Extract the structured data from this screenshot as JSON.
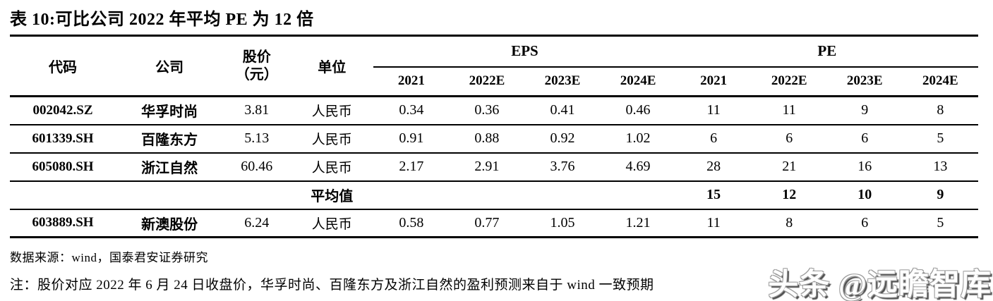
{
  "title": "表 10:可比公司 2022 年平均 PE 为 12 倍",
  "table": {
    "headers": {
      "code": "代码",
      "company": "公司",
      "price_line1": "股价",
      "price_line2": "（元）",
      "unit": "单位",
      "eps_group": "EPS",
      "pe_group": "PE",
      "years": [
        "2021",
        "2022E",
        "2023E",
        "2024E"
      ]
    },
    "rows": [
      {
        "code": "002042.SZ",
        "company": "华孚时尚",
        "price": "3.81",
        "unit": "人民币",
        "eps": [
          "0.34",
          "0.36",
          "0.41",
          "0.46"
        ],
        "pe": [
          "11",
          "11",
          "9",
          "8"
        ]
      },
      {
        "code": "601339.SH",
        "company": "百隆东方",
        "price": "5.13",
        "unit": "人民币",
        "eps": [
          "0.91",
          "0.88",
          "0.92",
          "1.02"
        ],
        "pe": [
          "6",
          "6",
          "6",
          "5"
        ]
      },
      {
        "code": "605080.SH",
        "company": "浙江自然",
        "price": "60.46",
        "unit": "人民币",
        "eps": [
          "2.17",
          "2.91",
          "3.76",
          "4.69"
        ],
        "pe": [
          "28",
          "21",
          "16",
          "13"
        ]
      }
    ],
    "average_row": {
      "label": "平均值",
      "pe": [
        "15",
        "12",
        "10",
        "9"
      ]
    },
    "extra_row": {
      "code": "603889.SH",
      "company": "新澳股份",
      "price": "6.24",
      "unit": "人民币",
      "eps": [
        "0.58",
        "0.77",
        "1.05",
        "1.21"
      ],
      "pe": [
        "11",
        "8",
        "6",
        "5"
      ]
    }
  },
  "footer": {
    "source": "数据来源：wind，国泰君安证券研究",
    "note": "注：股价对应 2022 年 6 月 24 日收盘价，华孚时尚、百隆东方及浙江自然的盈利预测来自于 wind 一致预期"
  },
  "watermark": "头条 @远瞻智库",
  "colors": {
    "text": "#000000",
    "background": "#ffffff",
    "rule": "#000000",
    "watermark_fill": "#ffffff",
    "watermark_shadow": "#4f4f4f"
  }
}
